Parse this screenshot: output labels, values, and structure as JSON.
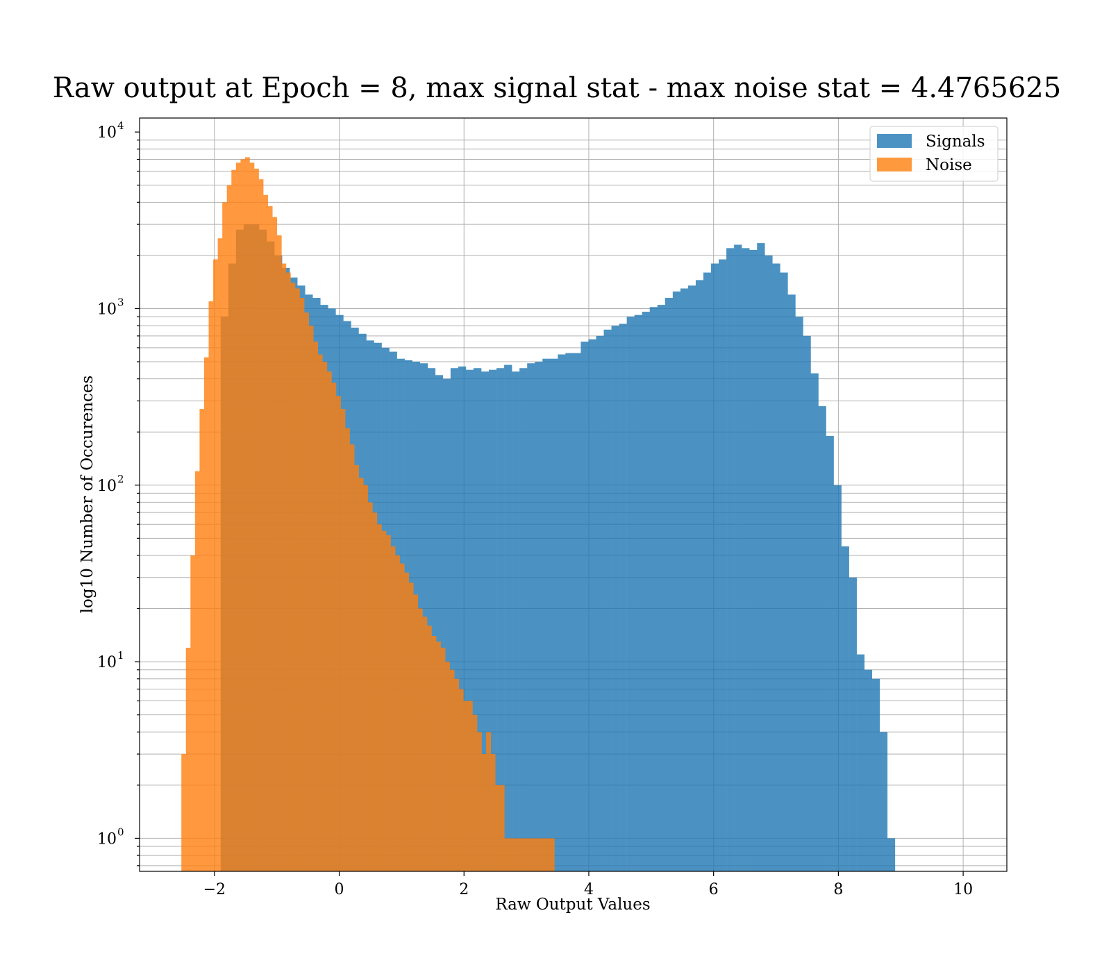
{
  "chart_data": {
    "type": "bar",
    "title": "Raw output at Epoch = 8, max signal stat - max noise stat = 4.4765625",
    "xlabel": "Raw Output Values",
    "ylabel": "log10 Number of Occurences",
    "xlim": [
      -3.2,
      10.7
    ],
    "ylim": [
      0.65,
      12000
    ],
    "y_scale": "log",
    "grid": true,
    "legend_position": "top-right",
    "x_ticks": [
      {
        "value": -2,
        "label": "−2"
      },
      {
        "value": 0,
        "label": "0"
      },
      {
        "value": 2,
        "label": "2"
      },
      {
        "value": 4,
        "label": "4"
      },
      {
        "value": 6,
        "label": "6"
      },
      {
        "value": 8,
        "label": "8"
      },
      {
        "value": 10,
        "label": "10"
      }
    ],
    "y_ticks": [
      {
        "value": 1,
        "base": "10",
        "exp": "0"
      },
      {
        "value": 10,
        "base": "10",
        "exp": "1"
      },
      {
        "value": 100,
        "base": "10",
        "exp": "2"
      },
      {
        "value": 1000,
        "base": "10",
        "exp": "3"
      },
      {
        "value": 10000,
        "base": "10",
        "exp": "4"
      }
    ],
    "series": [
      {
        "name": "Signals",
        "color": "#1f77b4",
        "bin_start": -1.9,
        "bin_width": 0.1228,
        "values": [
          900,
          1800,
          2800,
          3000,
          3000,
          2800,
          2400,
          2000,
          1700,
          1500,
          1350,
          1200,
          1150,
          1050,
          1000,
          920,
          850,
          780,
          720,
          660,
          640,
          600,
          570,
          520,
          510,
          500,
          490,
          460,
          420,
          400,
          460,
          470,
          450,
          460,
          440,
          450,
          460,
          480,
          440,
          460,
          490,
          500,
          520,
          520,
          550,
          560,
          560,
          650,
          670,
          700,
          760,
          800,
          820,
          900,
          920,
          960,
          1020,
          1050,
          1150,
          1250,
          1300,
          1350,
          1450,
          1600,
          1800,
          1900,
          2200,
          2300,
          2200,
          2150,
          2350,
          2000,
          1800,
          1600,
          1200,
          900,
          700,
          430,
          280,
          190,
          100,
          45,
          30,
          11,
          9,
          8,
          4,
          1
        ]
      },
      {
        "name": "Noise",
        "color": "#ff7f0e",
        "bin_start": -2.53,
        "bin_width": 0.0729,
        "values": [
          3,
          12,
          40,
          120,
          270,
          530,
          1100,
          1900,
          2500,
          4000,
          5000,
          6100,
          6700,
          7000,
          7200,
          6700,
          6200,
          5400,
          4400,
          3800,
          3300,
          2600,
          1800,
          1600,
          1400,
          1300,
          1150,
          950,
          800,
          650,
          550,
          500,
          440,
          380,
          320,
          270,
          210,
          170,
          130,
          110,
          100,
          80,
          70,
          60,
          55,
          52,
          45,
          40,
          36,
          32,
          28,
          24,
          20,
          18,
          16,
          14,
          13,
          12,
          10,
          9,
          8,
          7,
          6,
          6,
          5,
          4,
          3,
          4,
          3,
          2,
          2,
          1,
          1,
          1,
          1,
          1,
          1,
          1,
          1,
          1,
          1,
          1
        ]
      }
    ],
    "legend": [
      {
        "label": "Signals",
        "color": "#1f77b4"
      },
      {
        "label": "Noise",
        "color": "#ff7f0e"
      }
    ]
  }
}
